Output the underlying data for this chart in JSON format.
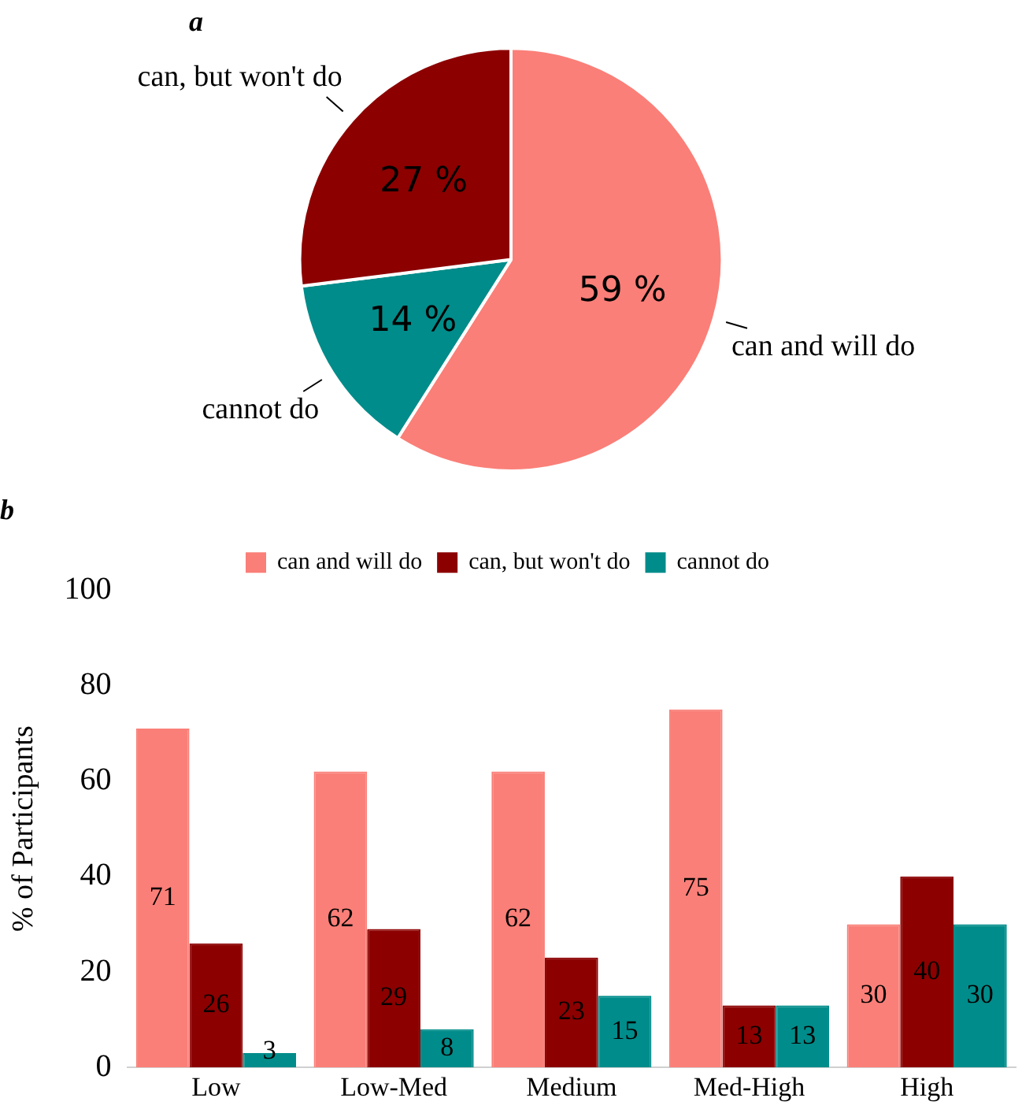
{
  "chart_data": [
    {
      "type": "pie",
      "title": "a",
      "categories": [
        "can and will do",
        "cannot do",
        "can, but won't do"
      ],
      "values": [
        59,
        14,
        27
      ],
      "colors": [
        "#fa7f78",
        "#008c8a",
        "#8c0000"
      ],
      "value_labels": [
        "59 %",
        "14 %",
        "27 %"
      ],
      "legend": false
    },
    {
      "type": "bar",
      "title": "b",
      "ylabel": "% of Participants",
      "categories": [
        "Low",
        "Low-Med",
        "Medium",
        "Med-High",
        "High"
      ],
      "series": [
        {
          "name": "can and will do",
          "color": "#fa7f78",
          "values": [
            71,
            62,
            62,
            75,
            30
          ]
        },
        {
          "name": "can, but won't do",
          "color": "#8c0000",
          "values": [
            26,
            29,
            23,
            13,
            40
          ]
        },
        {
          "name": "cannot do",
          "color": "#008c8a",
          "values": [
            3,
            8,
            15,
            13,
            30
          ]
        }
      ],
      "ylim": [
        0,
        100
      ],
      "yticks": [
        0,
        20,
        40,
        60,
        80,
        100
      ],
      "grid": false,
      "legend": "top",
      "data_labels": true
    }
  ]
}
